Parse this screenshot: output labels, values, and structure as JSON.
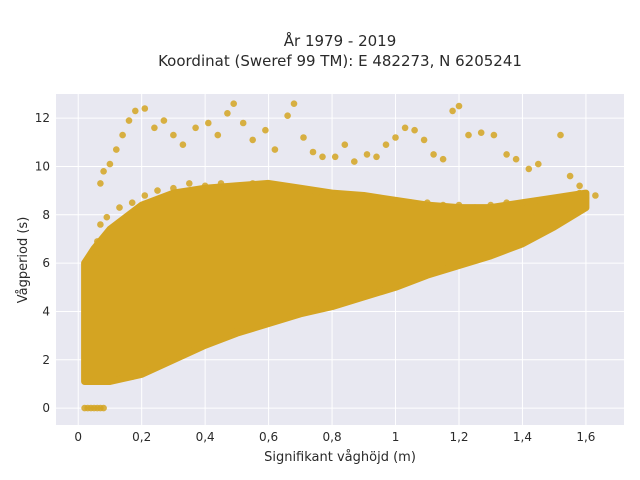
{
  "chart_data": {
    "type": "scatter",
    "title_lines": [
      "År 1979 - 2019",
      "Koordinat (Sweref 99 TM): E 482273, N 6205241"
    ],
    "xlabel": "Signifikant våghöjd (m)",
    "ylabel": "Vågperiod (s)",
    "xlim": [
      -0.07,
      1.72
    ],
    "ylim": [
      -0.7,
      13.0
    ],
    "x_ticks": [
      0,
      0.2,
      0.4,
      0.6,
      0.8,
      1.0,
      1.2,
      1.4,
      1.6
    ],
    "x_tick_labels": [
      "0",
      "0,2",
      "0,4",
      "0,6",
      "0,8",
      "1",
      "1,2",
      "1,4",
      "1,6"
    ],
    "y_ticks": [
      0,
      2,
      4,
      6,
      8,
      10,
      12
    ],
    "y_tick_labels": [
      "0",
      "2",
      "4",
      "6",
      "8",
      "10",
      "12"
    ],
    "grid": true,
    "colors": {
      "marker": "#d4a422",
      "background": "#e8e8f1",
      "grid": "#ffffff"
    },
    "envelope": {
      "x": [
        0.02,
        0.05,
        0.1,
        0.2,
        0.3,
        0.4,
        0.5,
        0.6,
        0.7,
        0.8,
        0.9,
        1.0,
        1.1,
        1.2,
        1.3,
        1.4,
        1.5,
        1.6
      ],
      "lower": [
        1.1,
        1.1,
        1.1,
        1.4,
        2.0,
        2.6,
        3.1,
        3.5,
        3.9,
        4.2,
        4.6,
        5.0,
        5.5,
        5.9,
        6.3,
        6.8,
        7.5,
        8.3
      ],
      "upper": [
        6.0,
        6.6,
        7.4,
        8.4,
        8.9,
        9.1,
        9.2,
        9.3,
        9.1,
        8.9,
        8.8,
        8.6,
        8.4,
        8.3,
        8.3,
        8.5,
        8.7,
        8.9
      ]
    },
    "series": [
      {
        "points": [
          [
            0.02,
            0
          ],
          [
            0.03,
            0
          ],
          [
            0.04,
            0
          ],
          [
            0.05,
            0
          ],
          [
            0.06,
            0
          ],
          [
            0.07,
            0
          ],
          [
            0.08,
            0
          ],
          [
            0.03,
            1.3
          ],
          [
            0.03,
            1.7
          ],
          [
            0.04,
            2.3
          ],
          [
            0.04,
            3.2
          ],
          [
            0.05,
            3.9
          ],
          [
            0.05,
            5.1
          ],
          [
            0.06,
            6.2
          ],
          [
            0.06,
            6.9
          ],
          [
            0.07,
            7.6
          ],
          [
            0.05,
            1.2
          ],
          [
            0.09,
            1.2
          ],
          [
            0.13,
            1.2
          ],
          [
            0.17,
            1.3
          ],
          [
            0.21,
            1.6
          ],
          [
            0.25,
            1.8
          ],
          [
            0.3,
            2.1
          ],
          [
            0.35,
            2.4
          ],
          [
            0.4,
            2.7
          ],
          [
            0.45,
            2.9
          ],
          [
            0.5,
            3.2
          ],
          [
            0.55,
            3.4
          ],
          [
            0.6,
            3.6
          ],
          [
            0.65,
            3.8
          ],
          [
            0.7,
            4.0
          ],
          [
            0.75,
            4.1
          ],
          [
            0.8,
            4.3
          ],
          [
            0.85,
            4.5
          ],
          [
            0.9,
            4.7
          ],
          [
            0.95,
            4.9
          ],
          [
            1.0,
            5.1
          ],
          [
            1.05,
            5.3
          ],
          [
            1.1,
            5.6
          ],
          [
            1.15,
            5.8
          ],
          [
            1.2,
            6.0
          ],
          [
            1.25,
            6.2
          ],
          [
            1.3,
            6.4
          ],
          [
            1.35,
            6.6
          ],
          [
            1.4,
            6.9
          ],
          [
            1.45,
            7.2
          ],
          [
            1.5,
            7.6
          ],
          [
            1.55,
            8.0
          ],
          [
            0.09,
            7.9
          ],
          [
            0.13,
            8.3
          ],
          [
            0.17,
            8.5
          ],
          [
            0.21,
            8.8
          ],
          [
            0.25,
            9.0
          ],
          [
            0.3,
            9.1
          ],
          [
            0.35,
            9.3
          ],
          [
            0.4,
            9.2
          ],
          [
            0.45,
            9.3
          ],
          [
            0.5,
            9.2
          ],
          [
            0.55,
            9.3
          ],
          [
            0.6,
            9.2
          ],
          [
            0.65,
            9.1
          ],
          [
            0.7,
            9.0
          ],
          [
            0.75,
            8.9
          ],
          [
            0.8,
            8.9
          ],
          [
            0.85,
            8.8
          ],
          [
            0.9,
            8.8
          ],
          [
            0.95,
            8.7
          ],
          [
            1.0,
            8.6
          ],
          [
            1.05,
            8.5
          ],
          [
            1.1,
            8.5
          ],
          [
            1.15,
            8.4
          ],
          [
            1.2,
            8.4
          ],
          [
            1.25,
            8.3
          ],
          [
            1.3,
            8.4
          ],
          [
            1.35,
            8.5
          ],
          [
            1.4,
            8.5
          ],
          [
            1.45,
            8.6
          ],
          [
            1.5,
            8.7
          ],
          [
            1.55,
            8.7
          ],
          [
            1.58,
            8.9
          ],
          [
            1.6,
            8.7
          ],
          [
            1.63,
            8.8
          ],
          [
            1.53,
            8.4
          ],
          [
            1.57,
            8.2
          ],
          [
            1.48,
            8.1
          ],
          [
            1.43,
            7.9
          ],
          [
            0.07,
            9.3
          ],
          [
            0.08,
            9.8
          ],
          [
            0.1,
            10.1
          ],
          [
            0.12,
            10.7
          ],
          [
            0.14,
            11.3
          ],
          [
            0.16,
            11.9
          ],
          [
            0.18,
            12.3
          ],
          [
            0.21,
            12.4
          ],
          [
            0.24,
            11.6
          ],
          [
            0.27,
            11.9
          ],
          [
            0.3,
            11.3
          ],
          [
            0.33,
            10.9
          ],
          [
            0.37,
            11.6
          ],
          [
            0.41,
            11.8
          ],
          [
            0.44,
            11.3
          ],
          [
            0.47,
            12.2
          ],
          [
            0.49,
            12.6
          ],
          [
            0.52,
            11.8
          ],
          [
            0.55,
            11.1
          ],
          [
            0.59,
            11.5
          ],
          [
            0.62,
            10.7
          ],
          [
            0.66,
            12.1
          ],
          [
            0.68,
            12.6
          ],
          [
            0.71,
            11.2
          ],
          [
            0.74,
            10.6
          ],
          [
            0.77,
            10.4
          ],
          [
            0.81,
            10.4
          ],
          [
            0.84,
            10.9
          ],
          [
            0.87,
            10.2
          ],
          [
            0.91,
            10.5
          ],
          [
            0.94,
            10.4
          ],
          [
            0.97,
            10.9
          ],
          [
            1.0,
            11.2
          ],
          [
            1.03,
            11.6
          ],
          [
            1.06,
            11.5
          ],
          [
            1.09,
            11.1
          ],
          [
            1.12,
            10.5
          ],
          [
            1.15,
            10.3
          ],
          [
            1.18,
            12.3
          ],
          [
            1.2,
            12.5
          ],
          [
            1.23,
            11.3
          ],
          [
            1.27,
            11.4
          ],
          [
            1.31,
            11.3
          ],
          [
            1.35,
            10.5
          ],
          [
            1.38,
            10.3
          ],
          [
            1.42,
            9.9
          ],
          [
            1.45,
            10.1
          ],
          [
            1.52,
            11.3
          ],
          [
            1.55,
            9.6
          ],
          [
            1.58,
            9.2
          ]
        ]
      }
    ]
  }
}
